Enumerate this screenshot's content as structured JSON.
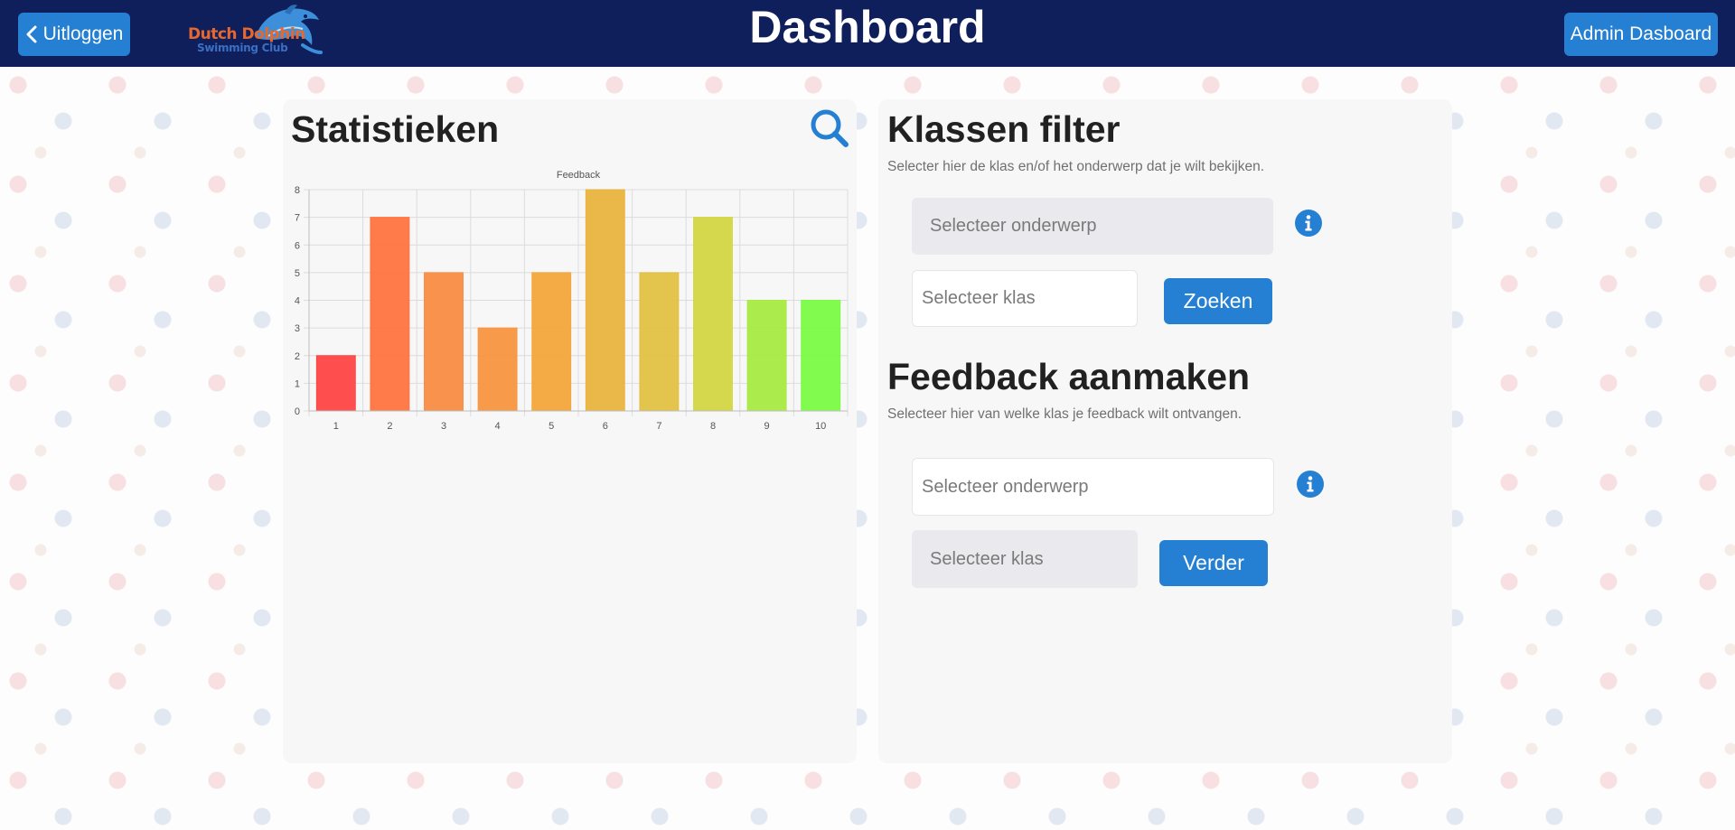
{
  "header": {
    "logout_label": "Uitloggen",
    "title": "Dashboard",
    "admin_label": "Admin Dasboard",
    "logo_title": "Dutch Dolphin",
    "logo_subtitle": "Swimming Club"
  },
  "stats": {
    "title": "Statistieken"
  },
  "filter": {
    "title": "Klassen filter",
    "description": "Selecter hier de klas en/of het onderwerp dat je wilt bekijken.",
    "subject_placeholder": "Selecteer onderwerp",
    "class_placeholder": "Selecteer klas",
    "search_label": "Zoeken"
  },
  "feedback": {
    "title": "Feedback aanmaken",
    "description": "Selecteer hier van welke klas je feedback wilt ontvangen.",
    "subject_placeholder": "Selecteer onderwerp",
    "class_placeholder": "Selecteer klas",
    "next_label": "Verder"
  },
  "colors": {
    "header_bg": "#0f1f5c",
    "primary_button": "#2580d4"
  },
  "chart_data": {
    "type": "bar",
    "title": "Feedback",
    "categories": [
      "1",
      "2",
      "3",
      "4",
      "5",
      "6",
      "7",
      "8",
      "9",
      "10"
    ],
    "values": [
      2,
      7,
      5,
      3,
      5,
      8,
      5,
      7,
      4,
      4
    ],
    "colors": [
      "#ff4545",
      "#ff7440",
      "#f98c42",
      "#f79640",
      "#f3a63b",
      "#e9b43e",
      "#e1c143",
      "#d3d642",
      "#a7ea41",
      "#79fb45"
    ],
    "ylim": [
      0,
      8
    ],
    "yticks": [
      0,
      1,
      2,
      3,
      4,
      5,
      6,
      7,
      8
    ],
    "grid": true,
    "xlabel": "",
    "ylabel": ""
  }
}
